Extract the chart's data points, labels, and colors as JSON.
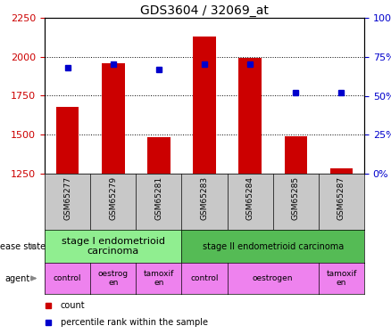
{
  "title": "GDS3604 / 32069_at",
  "samples": [
    "GSM65277",
    "GSM65279",
    "GSM65281",
    "GSM65283",
    "GSM65284",
    "GSM65285",
    "GSM65287"
  ],
  "counts": [
    1680,
    1960,
    1485,
    2130,
    1995,
    1490,
    1285
  ],
  "percentile_ranks": [
    68,
    70,
    67,
    70,
    70,
    52,
    52
  ],
  "ylim_left": [
    1250,
    2250
  ],
  "ylim_right": [
    0,
    100
  ],
  "yticks_left": [
    1250,
    1500,
    1750,
    2000,
    2250
  ],
  "yticks_right": [
    0,
    25,
    50,
    75,
    100
  ],
  "bar_color": "#cc0000",
  "dot_color": "#0000cc",
  "bar_width": 0.5,
  "disease_state_list": [
    {
      "label": "stage I endometrioid\ncarcinoma",
      "start": 0,
      "end": 2,
      "color": "#90ee90",
      "fontsize": 8
    },
    {
      "label": "stage II endometrioid carcinoma",
      "start": 3,
      "end": 6,
      "color": "#55bb55",
      "fontsize": 7
    }
  ],
  "agent_list": [
    {
      "label": "control",
      "start": 0,
      "end": 0
    },
    {
      "label": "oestrog\nen",
      "start": 1,
      "end": 1
    },
    {
      "label": "tamoxif\nen",
      "start": 2,
      "end": 2
    },
    {
      "label": "control",
      "start": 3,
      "end": 3
    },
    {
      "label": "oestrogen",
      "start": 4,
      "end": 5
    },
    {
      "label": "tamoxif\nen",
      "start": 6,
      "end": 6
    }
  ],
  "agent_color": "#ee82ee",
  "xlabel_bg": "#c8c8c8",
  "tick_label_color_left": "#cc0000",
  "tick_label_color_right": "#0000cc",
  "legend_items": [
    {
      "color": "#cc0000",
      "label": "count"
    },
    {
      "color": "#0000cc",
      "label": "percentile rank within the sample"
    }
  ]
}
